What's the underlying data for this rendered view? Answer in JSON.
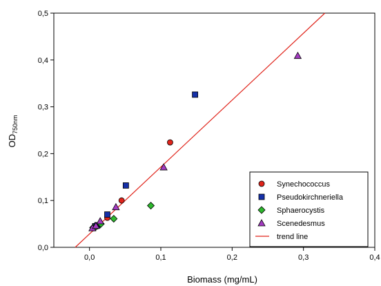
{
  "chart_data": {
    "type": "scatter",
    "xlabel": "Biomass (mg/mL)",
    "ylabel_main": "OD",
    "ylabel_sub": "750nm",
    "xlim": [
      -0.05,
      0.4
    ],
    "ylim": [
      0.0,
      0.5
    ],
    "x_ticks": [
      {
        "v": 0.0,
        "label": "0,0"
      },
      {
        "v": 0.1,
        "label": "0,1"
      },
      {
        "v": 0.2,
        "label": "0,2"
      },
      {
        "v": 0.3,
        "label": "0,3"
      },
      {
        "v": 0.4,
        "label": "0,4"
      }
    ],
    "y_ticks": [
      {
        "v": 0.0,
        "label": "0,0"
      },
      {
        "v": 0.1,
        "label": "0,1"
      },
      {
        "v": 0.2,
        "label": "0,2"
      },
      {
        "v": 0.3,
        "label": "0,3"
      },
      {
        "v": 0.4,
        "label": "0,4"
      },
      {
        "v": 0.5,
        "label": "0,5"
      }
    ],
    "grid": false,
    "legend_position": "bottom-right",
    "series": [
      {
        "name": "Synechococcus",
        "marker": "circle",
        "color": "#e0241b",
        "points": [
          [
            0.007,
            0.043
          ],
          [
            0.013,
            0.047
          ],
          [
            0.025,
            0.063
          ],
          [
            0.045,
            0.1
          ],
          [
            0.113,
            0.224
          ]
        ]
      },
      {
        "name": "Pseudokirchneriella",
        "marker": "square",
        "color": "#1530a8",
        "points": [
          [
            0.008,
            0.045
          ],
          [
            0.011,
            0.047
          ],
          [
            0.025,
            0.07
          ],
          [
            0.051,
            0.132
          ],
          [
            0.148,
            0.326
          ]
        ]
      },
      {
        "name": "Sphaerocystis",
        "marker": "diamond",
        "color": "#2db82d",
        "points": [
          [
            0.005,
            0.042
          ],
          [
            0.009,
            0.044
          ],
          [
            0.016,
            0.05
          ],
          [
            0.034,
            0.061
          ],
          [
            0.086,
            0.089
          ]
        ]
      },
      {
        "name": "Scenedesmus",
        "marker": "triangle",
        "color": "#a43bc2",
        "points": [
          [
            0.004,
            0.041
          ],
          [
            0.009,
            0.046
          ],
          [
            0.015,
            0.056
          ],
          [
            0.037,
            0.086
          ],
          [
            0.104,
            0.171
          ],
          [
            0.292,
            0.409
          ]
        ]
      }
    ],
    "trend_line": {
      "name": "trend line",
      "color": "#e0241b",
      "x0": -0.02,
      "y0": 0.0,
      "x1": 0.33,
      "y1": 0.5
    }
  }
}
